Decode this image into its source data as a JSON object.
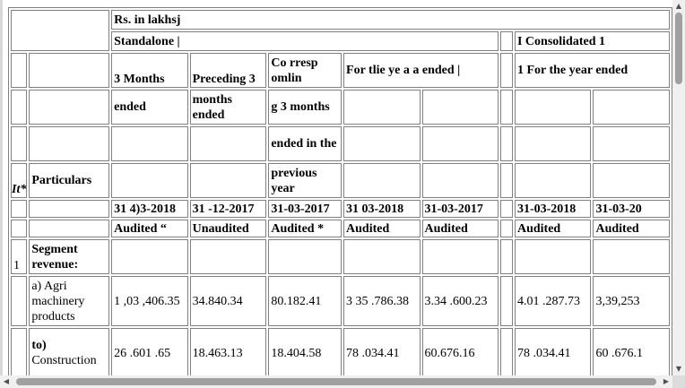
{
  "header": {
    "units": "Rs. in lakhsj",
    "standalone": "Standalone |",
    "consolidated": "I Consolidated 1"
  },
  "columns": {
    "c1": [
      "3 Months",
      "ended"
    ],
    "c2": [
      "Preceding 3",
      "months ended"
    ],
    "c3": [
      "Co rresp omlin",
      "g 3 months",
      "ended in the",
      "previous year"
    ],
    "c4": [
      "For tlie ye a a ended |"
    ],
    "c6": [
      "1 For the year ended"
    ]
  },
  "labels": {
    "sr": "It*",
    "particulars": "Particulars"
  },
  "dates": [
    "31 4)3-2018",
    "31 -12-2017",
    "31-03-2017",
    "31 03-2018",
    "31-03-2017",
    "31-03-2018",
    "31-03-20"
  ],
  "status": [
    "Audited “",
    "Unaudited",
    "Audited *",
    "Audited",
    "Audited",
    "Audited",
    "Audited"
  ],
  "rows": [
    {
      "sr": "1",
      "particular": "Segment revenue:",
      "values": [
        "",
        "",
        "",
        "",
        "",
        "",
        ""
      ]
    },
    {
      "sr": "",
      "particular": "a) Agri machinery products",
      "values": [
        "1 ,03 ,406.35",
        "34.840.34",
        "80.182.41",
        "3 35 .786.38",
        "3.34 .600.23",
        "4.01 .287.73",
        "3,39,253"
      ]
    },
    {
      "sr": "",
      "particular_bold": "to)",
      "particular": "Construction",
      "values": [
        "26 .601 .65",
        "18.463.13",
        "18.404.58",
        "78 .034.41",
        "60.676.16",
        "78 .034.41",
        "60 .676.1"
      ]
    }
  ]
}
